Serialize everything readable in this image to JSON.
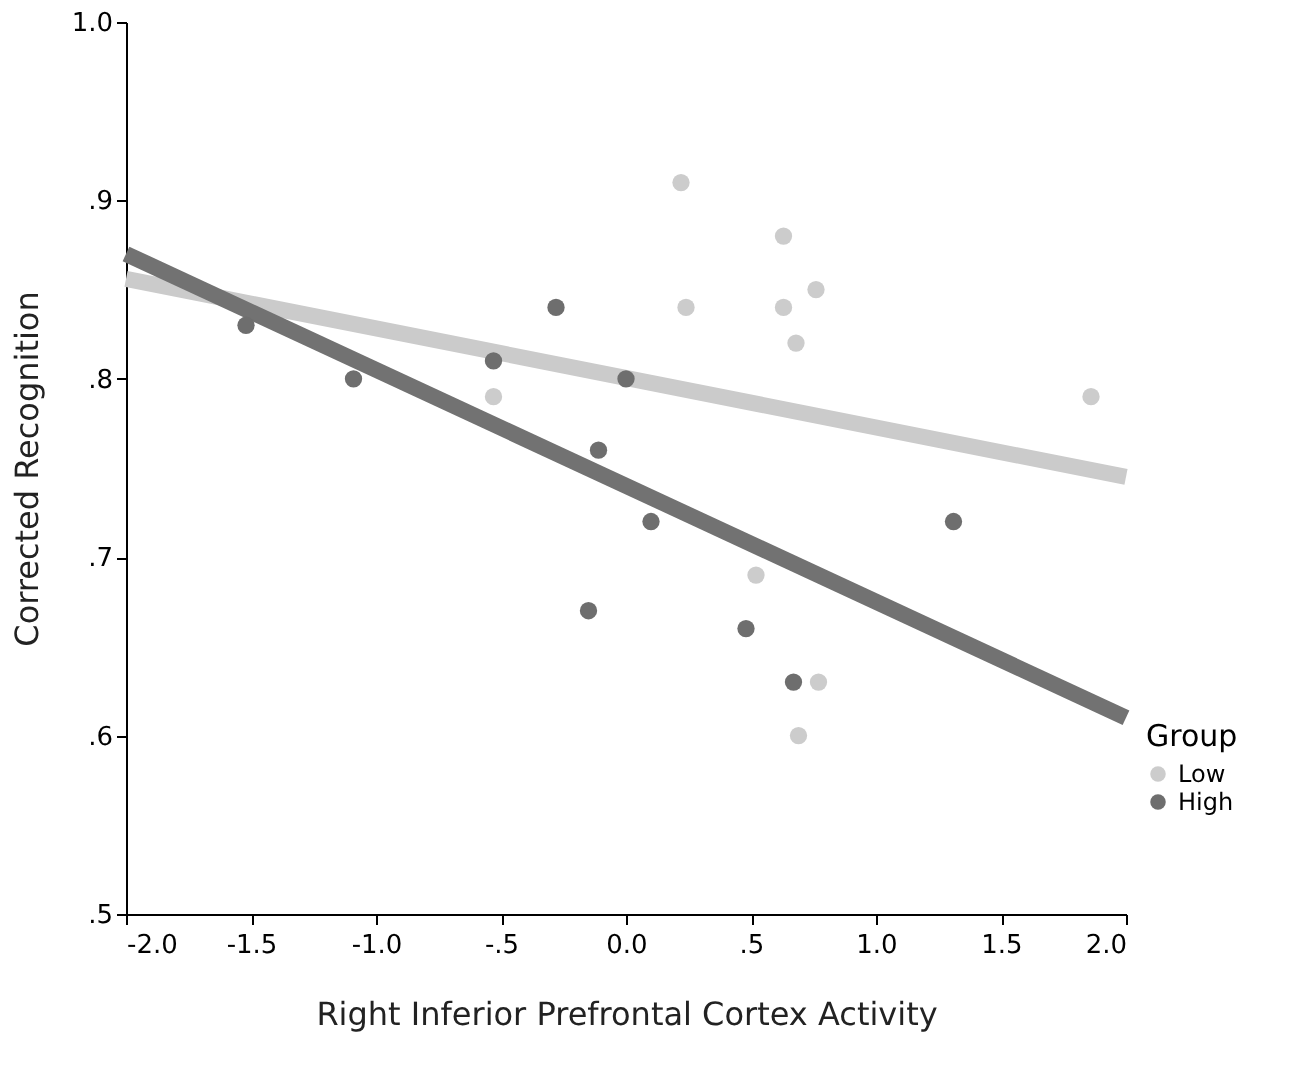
{
  "chart_data": {
    "type": "scatter",
    "xlabel": "Right Inferior Prefrontal Cortex Activity",
    "ylabel": "Corrected Recognition",
    "legend_title": "Group",
    "legend": "bottom right",
    "grid": false,
    "marker": "circle",
    "xlim": [
      -2,
      2
    ],
    "ylim": [
      0.5,
      1.0
    ],
    "xticks": [
      {
        "value": -2,
        "label": "-2.0"
      },
      {
        "value": -1.5,
        "label": "-1.5"
      },
      {
        "value": -1,
        "label": "-1.0"
      },
      {
        "value": -0.5,
        "label": "-.5"
      },
      {
        "value": 0,
        "label": "0.0"
      },
      {
        "value": 0.5,
        "label": ".5"
      },
      {
        "value": 1,
        "label": "1.0"
      },
      {
        "value": 1.5,
        "label": "1.5"
      },
      {
        "value": 2,
        "label": "2.0"
      }
    ],
    "yticks": [
      {
        "value": 0.5,
        "label": ".5"
      },
      {
        "value": 0.6,
        "label": ".6"
      },
      {
        "value": 0.7,
        "label": ".7"
      },
      {
        "value": 0.8,
        "label": ".8"
      },
      {
        "value": 0.9,
        "label": ".9"
      },
      {
        "value": 1.0,
        "label": "1.0"
      }
    ],
    "series": [
      {
        "type": "line",
        "marker": "none",
        "color": "#cbcbcb",
        "line_style": "solid",
        "x": [
          -2,
          2
        ],
        "values": [
          0.856,
          0.745
        ]
      },
      {
        "type": "line",
        "marker": "none",
        "color": "#727272",
        "line_style": "solid",
        "x": [
          -2,
          2
        ],
        "values": [
          0.87,
          0.61
        ]
      },
      {
        "name": "Low",
        "color": "#cccccc",
        "x": [
          0.22,
          0.63,
          0.24,
          0.63,
          0.76,
          0.68,
          1.86,
          0.52,
          0.77,
          0.69,
          -0.53
        ],
        "values": [
          0.91,
          0.88,
          0.84,
          0.84,
          0.85,
          0.82,
          0.79,
          0.69,
          0.63,
          0.6,
          0.79
        ]
      },
      {
        "name": "High",
        "color": "#6e6e6e",
        "x": [
          -1.52,
          -1.09,
          -0.53,
          -0.28,
          0.0,
          -0.11,
          0.1,
          -0.15,
          0.48,
          0.67,
          1.31
        ],
        "values": [
          0.83,
          0.8,
          0.81,
          0.84,
          0.8,
          0.76,
          0.72,
          0.67,
          0.66,
          0.63,
          0.72
        ]
      }
    ]
  }
}
